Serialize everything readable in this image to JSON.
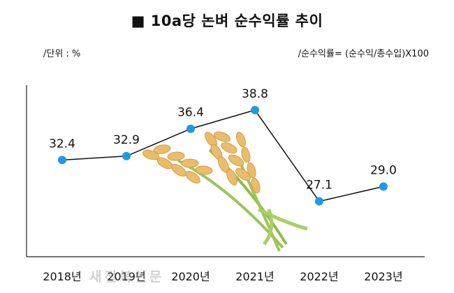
{
  "title": "■ 10a당 논벼 순수익률 추이",
  "unit_note": "/단위 : %",
  "formula_note": "/순수익률= (순수익/총수입)X100",
  "watermark": "새전북신문",
  "chart_data": {
    "type": "line",
    "title": "■ 10a당 논벼 순수익률 추이",
    "categories": [
      "2018년",
      "2019년",
      "2020년",
      "2021년",
      "2022년",
      "2023년"
    ],
    "series": [
      {
        "values": [
          32.4,
          32.9,
          36.4,
          38.8,
          27.1,
          29.0
        ]
      }
    ],
    "data_labels": [
      "32.4",
      "32.9",
      "36.4",
      "38.8",
      "27.1",
      "29.0"
    ],
    "ylim": [
      20,
      42
    ],
    "grid": false,
    "colors": {
      "line": "#111111",
      "marker": "#1e9be0",
      "axis": "#222222"
    }
  }
}
